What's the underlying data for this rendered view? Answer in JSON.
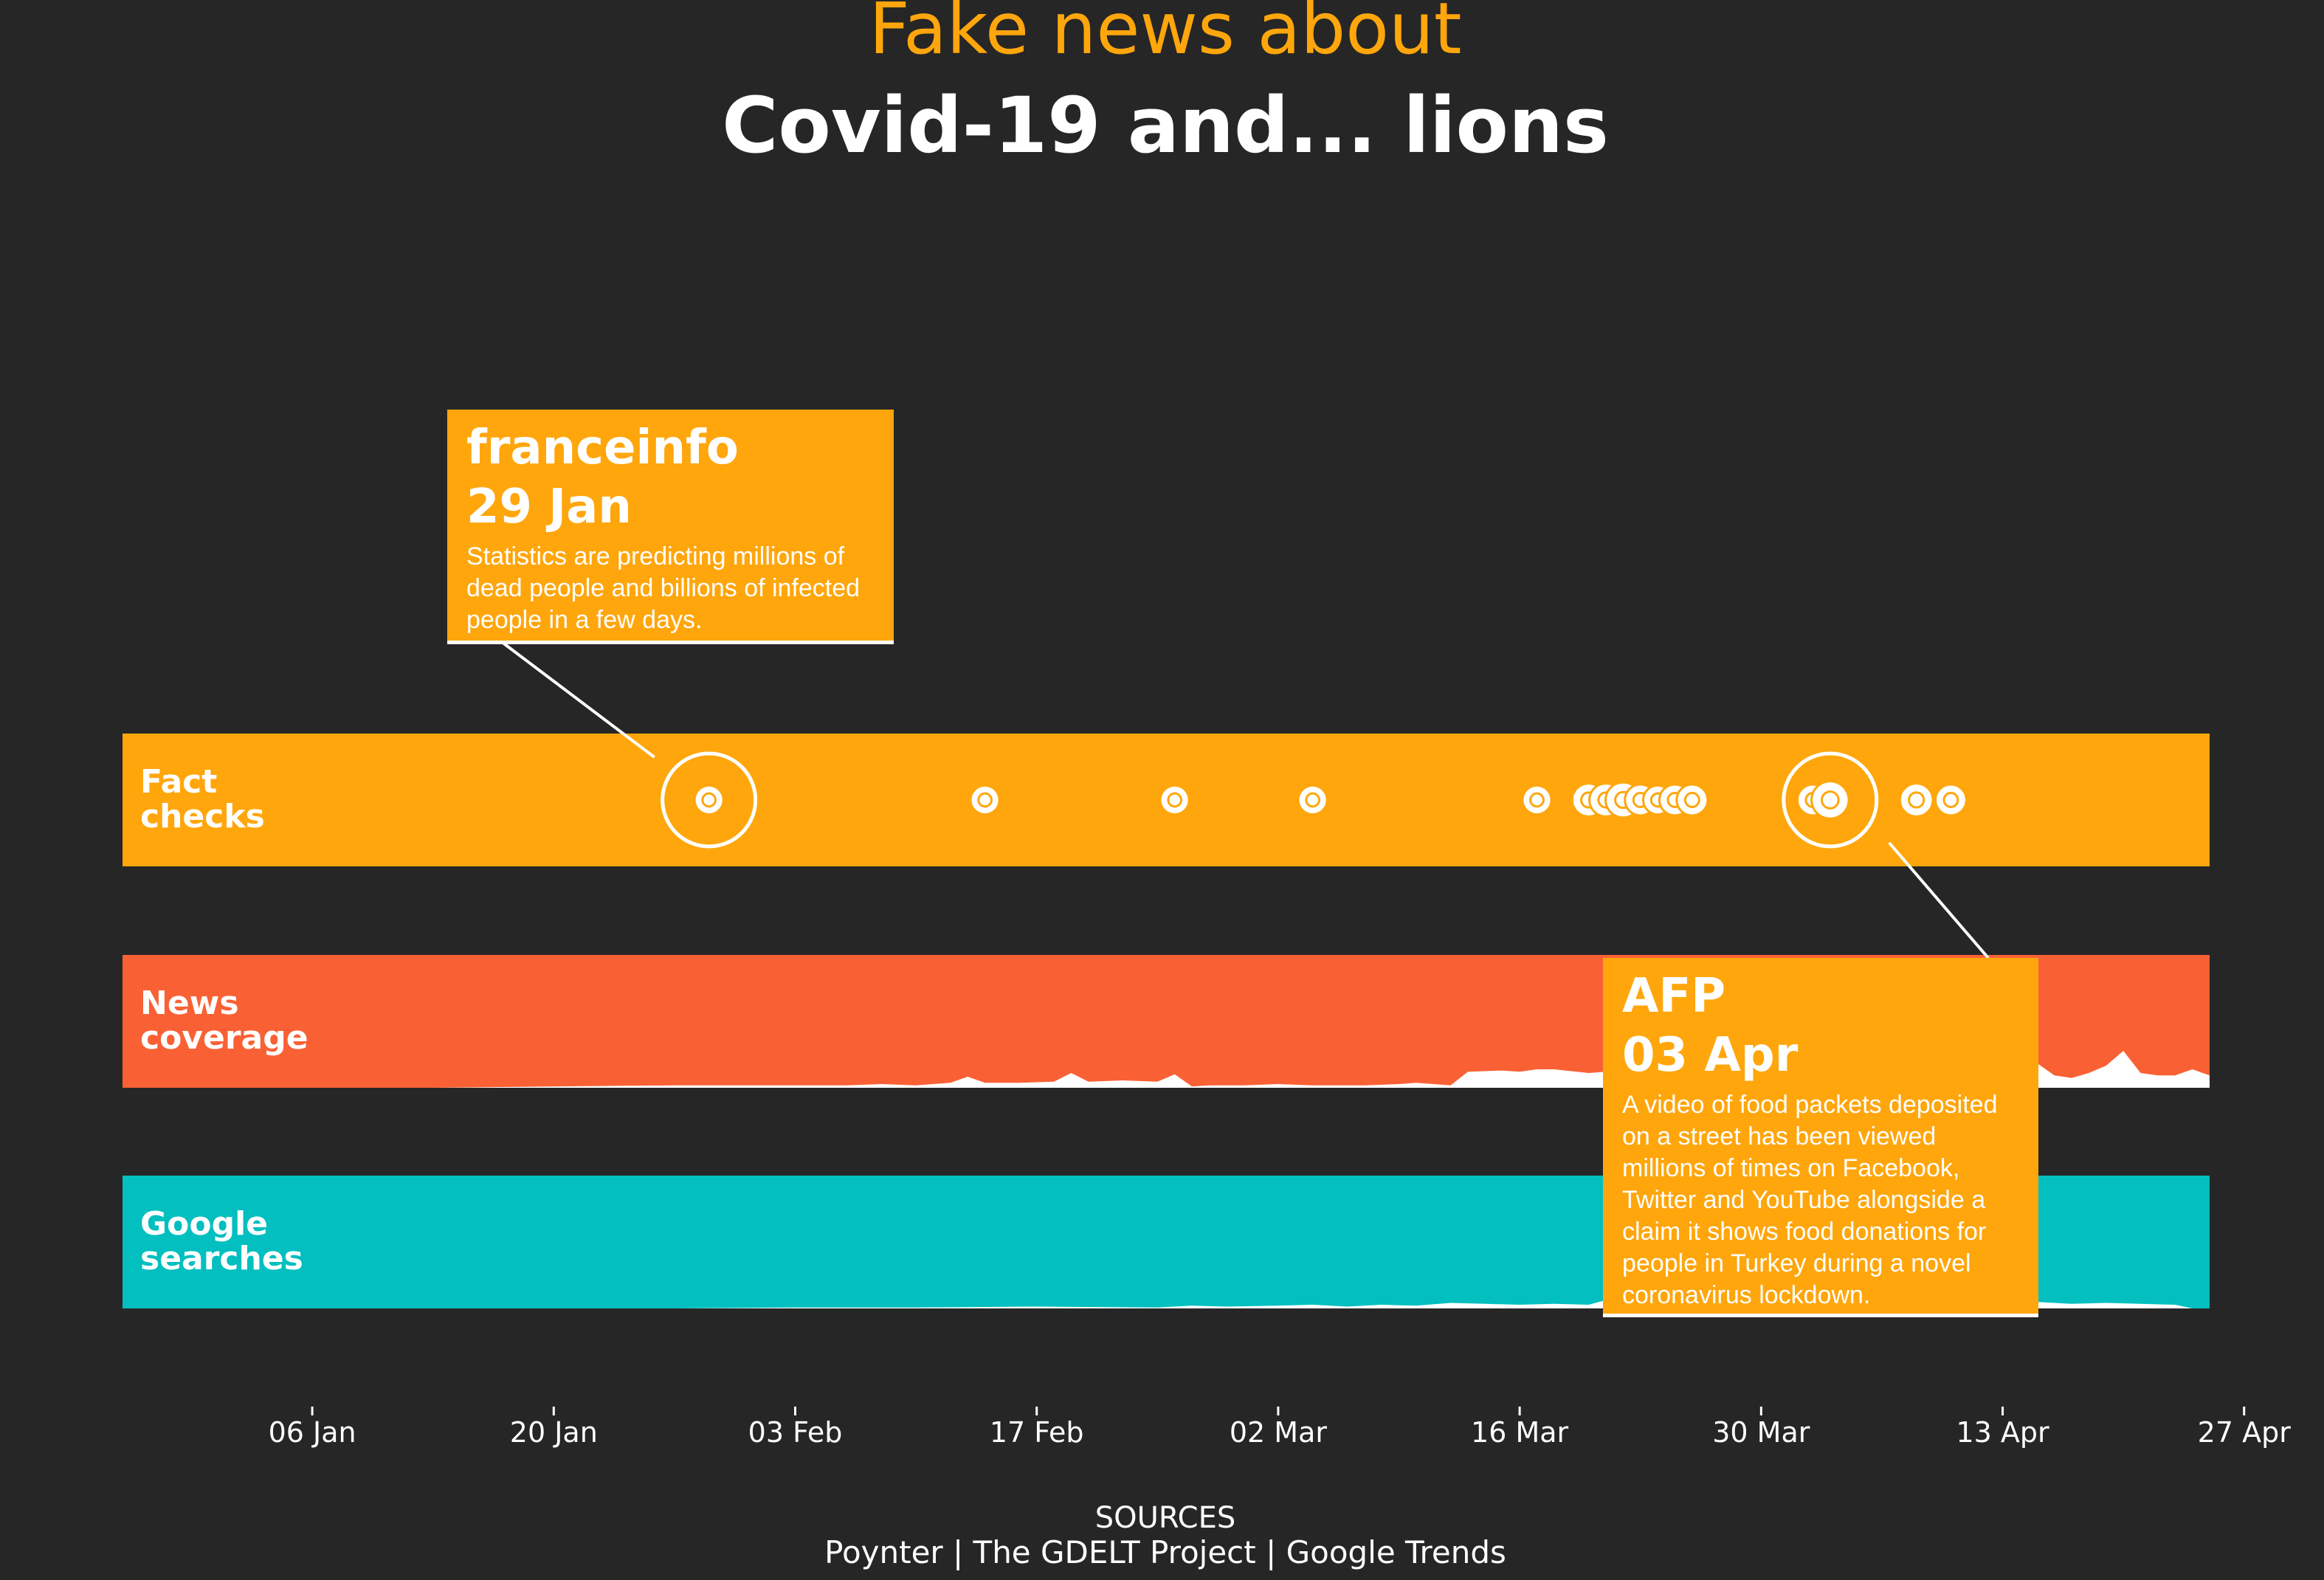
{
  "title": {
    "line1": "Fake news about",
    "line2": "Covid-19 and... lions"
  },
  "colors": {
    "background": "#262626",
    "fact_checks": "#FFA60C",
    "news_coverage": "#F96135",
    "google_searches": "#03BFBF",
    "area_fill": "#FFFFFF"
  },
  "chart_data": {
    "type": "area",
    "x_axis": {
      "range": [
        "2019-12-26",
        "2020-04-25"
      ],
      "ticks": [
        {
          "date": "2020-01-06",
          "label": "06 Jan"
        },
        {
          "date": "2020-01-20",
          "label": "20 Jan"
        },
        {
          "date": "2020-02-03",
          "label": "03 Feb"
        },
        {
          "date": "2020-02-17",
          "label": "17 Feb"
        },
        {
          "date": "2020-03-02",
          "label": "02 Mar"
        },
        {
          "date": "2020-03-16",
          "label": "16 Mar"
        },
        {
          "date": "2020-03-30",
          "label": "30 Mar"
        },
        {
          "date": "2020-04-13",
          "label": "13 Apr"
        },
        {
          "date": "2020-04-27",
          "label": "27 Apr"
        }
      ]
    },
    "tracks": [
      {
        "id": "fact_checks",
        "label_line1": "Fact",
        "label_line2": "checks",
        "kind": "dots",
        "points": [
          {
            "date": "2020-01-29",
            "size": 0.4,
            "highlight": true
          },
          {
            "date": "2020-02-14",
            "size": 0.4
          },
          {
            "date": "2020-02-25",
            "size": 0.4
          },
          {
            "date": "2020-03-04",
            "size": 0.4
          },
          {
            "date": "2020-03-17",
            "size": 0.4
          },
          {
            "date": "2020-03-20",
            "size": 0.4
          },
          {
            "date": "2020-03-20",
            "size": 0.6
          },
          {
            "date": "2020-03-21",
            "size": 0.6
          },
          {
            "date": "2020-03-22",
            "size": 0.7
          },
          {
            "date": "2020-03-23",
            "size": 0.5
          },
          {
            "date": "2020-03-24",
            "size": 0.4
          },
          {
            "date": "2020-03-25",
            "size": 0.5
          },
          {
            "date": "2020-03-26",
            "size": 0.5
          },
          {
            "date": "2020-04-02",
            "size": 0.5
          },
          {
            "date": "2020-04-03",
            "size": 0.8,
            "highlight": true
          },
          {
            "date": "2020-04-08",
            "size": 0.6
          },
          {
            "date": "2020-04-10",
            "size": 0.5
          }
        ]
      },
      {
        "id": "news_coverage",
        "label_line1": "News",
        "label_line2": "coverage",
        "kind": "area",
        "x": [
          "2020-01-13",
          "2020-01-20",
          "2020-01-27",
          "2020-01-31",
          "2020-02-04",
          "2020-02-06",
          "2020-02-08",
          "2020-02-10",
          "2020-02-12",
          "2020-02-13",
          "2020-02-14",
          "2020-02-16",
          "2020-02-18",
          "2020-02-19",
          "2020-02-20",
          "2020-02-22",
          "2020-02-24",
          "2020-02-25",
          "2020-02-26",
          "2020-02-27",
          "2020-02-29",
          "2020-03-02",
          "2020-03-04",
          "2020-03-06",
          "2020-03-07",
          "2020-03-09",
          "2020-03-10",
          "2020-03-11",
          "2020-03-12",
          "2020-03-13",
          "2020-03-15",
          "2020-03-16",
          "2020-03-17",
          "2020-03-18",
          "2020-03-20",
          "2020-03-21",
          "2020-03-22",
          "2020-03-24",
          "2020-03-26",
          "2020-03-28",
          "2020-03-30",
          "2020-04-01",
          "2020-04-03",
          "2020-04-05",
          "2020-04-07",
          "2020-04-09",
          "2020-04-11",
          "2020-04-13",
          "2020-04-14",
          "2020-04-15",
          "2020-04-16",
          "2020-04-17",
          "2020-04-18",
          "2020-04-19",
          "2020-04-20",
          "2020-04-21",
          "2020-04-22",
          "2020-04-23",
          "2020-04-24",
          "2020-04-25"
        ],
        "values": [
          0,
          1,
          2,
          2,
          2,
          2,
          3,
          2,
          4,
          9,
          4,
          4,
          5,
          12,
          5,
          6,
          5,
          11,
          1,
          2,
          2,
          3,
          2,
          2,
          2,
          3,
          4,
          3,
          2,
          13,
          14,
          13,
          15,
          15,
          12,
          13,
          16,
          15,
          16,
          16,
          16,
          15,
          15,
          16,
          16,
          16,
          15,
          14,
          25,
          20,
          10,
          8,
          12,
          18,
          30,
          12,
          10,
          10,
          15,
          10
        ]
      },
      {
        "id": "google_searches",
        "label_line1": "Google",
        "label_line2": "searches",
        "kind": "area",
        "x": [
          "2020-01-20",
          "2020-01-27",
          "2020-02-03",
          "2020-02-10",
          "2020-02-17",
          "2020-02-24",
          "2020-02-26",
          "2020-02-28",
          "2020-03-02",
          "2020-03-04",
          "2020-03-06",
          "2020-03-08",
          "2020-03-10",
          "2020-03-12",
          "2020-03-14",
          "2020-03-16",
          "2020-03-18",
          "2020-03-20",
          "2020-03-21",
          "2020-03-22",
          "2020-03-23",
          "2020-03-24",
          "2020-03-25",
          "2020-03-27",
          "2020-03-29",
          "2020-04-01",
          "2020-04-03",
          "2020-04-05",
          "2020-04-07",
          "2020-04-09",
          "2020-04-11",
          "2020-04-13",
          "2020-04-15",
          "2020-04-17",
          "2020-04-19",
          "2020-04-21",
          "2020-04-23",
          "2020-04-24",
          "2020-04-25"
        ],
        "values": [
          0,
          0,
          1,
          1,
          2,
          1,
          3,
          2,
          3,
          4,
          2,
          4,
          3,
          6,
          5,
          4,
          5,
          4,
          9,
          5,
          6,
          3,
          100,
          10,
          8,
          8,
          9,
          8,
          7,
          6,
          5,
          6,
          7,
          5,
          6,
          5,
          4,
          0,
          0
        ]
      }
    ],
    "annotations": [
      {
        "date": "2020-01-29",
        "source": "franceinfo",
        "date_label": "29 Jan",
        "text": "Statistics are predicting millions of dead people and billions of infected people in a few days."
      },
      {
        "date": "2020-04-03",
        "source": "AFP",
        "date_label": "03 Apr",
        "text": "A video of food packets deposited on a street has been viewed millions of times on Facebook, Twitter and YouTube alongside a claim it shows food donations for people in Turkey during a novel coronavirus lockdown."
      }
    ]
  },
  "sources": {
    "heading": "SOURCES",
    "list": "Poynter | The GDELT Project | Google Trends"
  }
}
